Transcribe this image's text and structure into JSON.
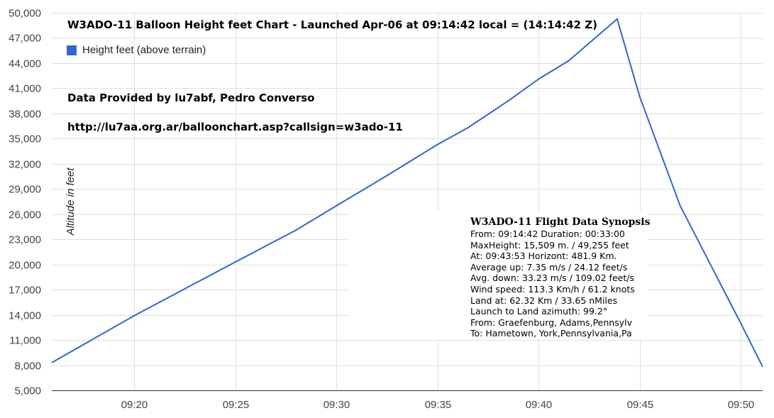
{
  "colors": {
    "series": "#3366cc",
    "grid": "#e0e0e0",
    "axis": "#333333",
    "background": "#ffffff"
  },
  "overlay": {
    "title": "W3ADO-11 Balloon Height feet Chart - Launched Apr-06 at 09:14:42 local = (14:14:42 Z)",
    "credit": "Data Provided by lu7abf, Pedro Converso",
    "url": "http://lu7aa.org.ar/balloonchart.asp?callsign=w3ado-11"
  },
  "synopsis": {
    "title": "W3ADO-11 Flight Data Synopsis",
    "lines": [
      "From: 09:14:42 Duration: 00:33:00",
      "MaxHeight: 15,509 m. / 49,255 feet",
      "At: 09:43:53  Horizont: 481.9 Km.",
      "Average up: 7.35 m/s / 24.12 feet/s",
      "Avg. down: 33.23 m/s / 109.02 feet/s",
      "Wind speed: 113.3 Km/h / 61.2 knots",
      "Land at: 62.32 Km / 33.65 nMiles",
      "Launch to Land azimuth: 99.2°",
      "From: Graefenburg, Adams,Pennsylv",
      "To: Hametown, York,Pennsylvania,Pa"
    ]
  },
  "chart_data": {
    "type": "line",
    "ylabel": "Altitude in feet",
    "xlabel": "",
    "legend": {
      "position": "top-left",
      "entries": [
        "Height feet (above terrain)"
      ]
    },
    "grid": true,
    "ylim": [
      5000,
      50000
    ],
    "yticks": [
      5000,
      8000,
      11000,
      14000,
      17000,
      20000,
      23000,
      26000,
      29000,
      32000,
      35000,
      38000,
      41000,
      44000,
      47000,
      50000
    ],
    "ytick_labels": [
      "5,000",
      "8,000",
      "11,000",
      "14,000",
      "17,000",
      "20,000",
      "23,000",
      "26,000",
      "29,000",
      "32,000",
      "35,000",
      "38,000",
      "41,000",
      "44,000",
      "47,000",
      "50,000"
    ],
    "xlim": [
      "09:15:55",
      "09:51:05"
    ],
    "xticks": [
      "09:20",
      "09:25",
      "09:30",
      "09:35",
      "09:40",
      "09:45",
      "09:50"
    ],
    "series": [
      {
        "name": "Height feet (above terrain)",
        "x": [
          "09:15:55",
          "09:20:00",
          "09:25:00",
          "09:28:00",
          "09:30:00",
          "09:32:30",
          "09:35:00",
          "09:36:30",
          "09:38:30",
          "09:40:00",
          "09:41:30",
          "09:43:53",
          "09:45:00",
          "09:47:00",
          "09:50:00",
          "09:51:05"
        ],
        "y": [
          8300,
          13900,
          20300,
          24100,
          27000,
          30600,
          34300,
          36300,
          39500,
          42100,
          44300,
          49255,
          40000,
          27000,
          13000,
          7800
        ]
      }
    ]
  }
}
